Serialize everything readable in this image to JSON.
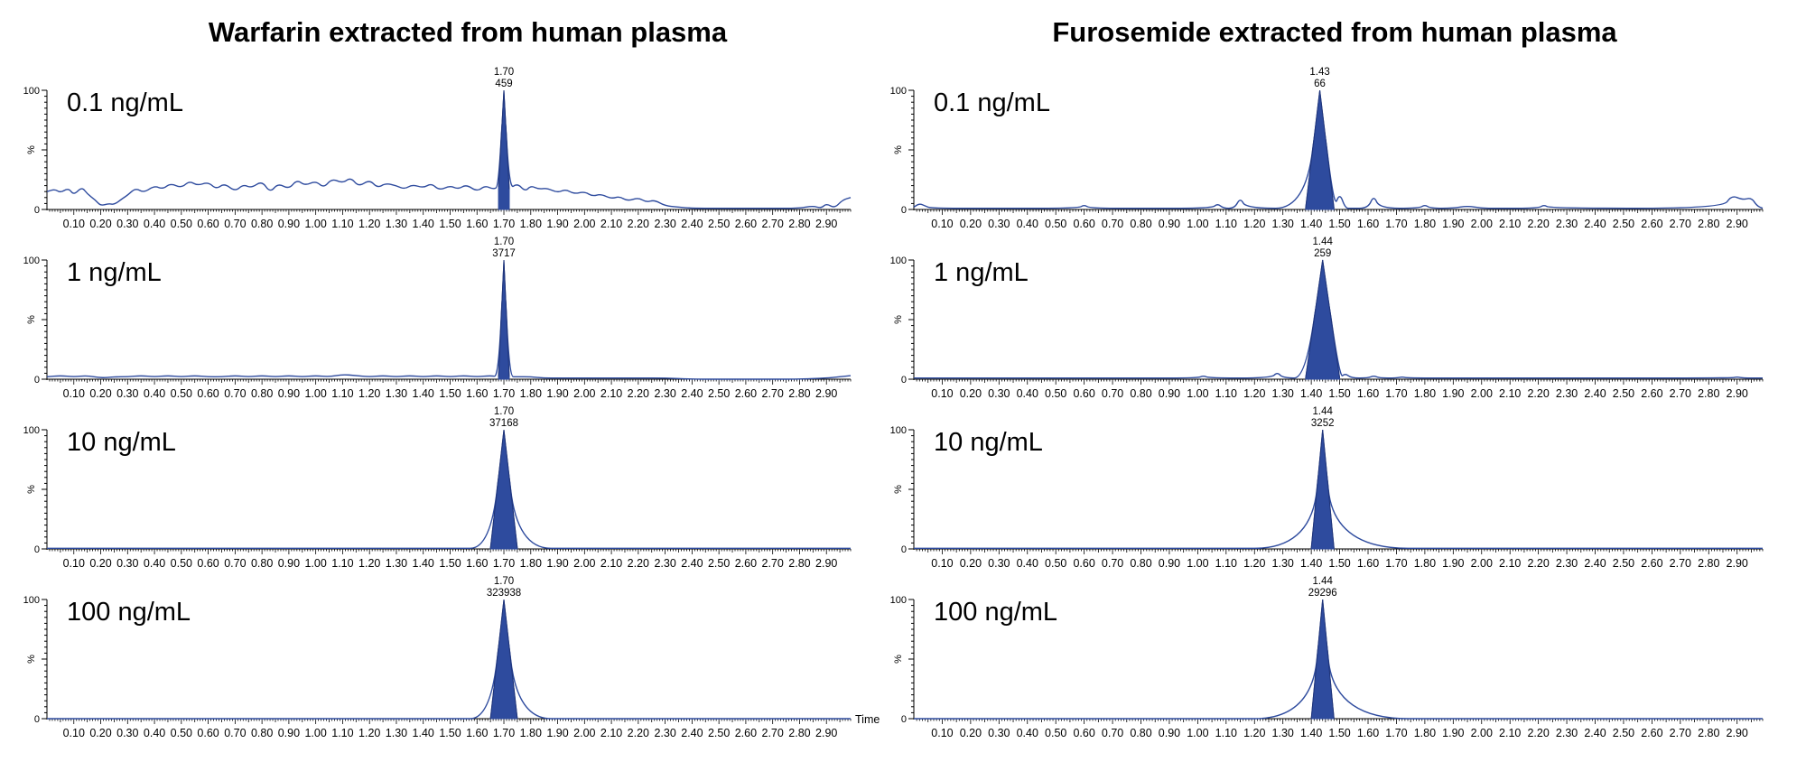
{
  "chart_data": [
    {
      "type": "line",
      "title": "Warfarin extracted from human plasma",
      "ylabel": "%",
      "xlabel": "Time",
      "xlim": [
        0.0,
        2.99
      ],
      "ylim": [
        0,
        100
      ],
      "xticks": [
        "0.10",
        "0.20",
        "0.30",
        "0.40",
        "0.50",
        "0.60",
        "0.70",
        "0.80",
        "0.90",
        "1.00",
        "1.10",
        "1.20",
        "1.30",
        "1.40",
        "1.50",
        "1.60",
        "1.70",
        "1.80",
        "1.90",
        "2.00",
        "2.10",
        "2.20",
        "2.30",
        "2.40",
        "2.50",
        "2.60",
        "2.70",
        "2.80",
        "2.90"
      ],
      "yticks": [
        "0",
        "100"
      ],
      "peak_color": "#2e4b9e",
      "panels": [
        {
          "label": "0.1 ng/mL",
          "peak_time": "1.70",
          "peak_area": "459",
          "series": [
            {
              "x": [
                0.0,
                0.03,
                0.05,
                0.08,
                0.1,
                0.13,
                0.15,
                0.18,
                0.2,
                0.23,
                0.25,
                0.28,
                0.3,
                0.33,
                0.36,
                0.4,
                0.43,
                0.46,
                0.5,
                0.53,
                0.56,
                0.6,
                0.63,
                0.66,
                0.7,
                0.73,
                0.76,
                0.8,
                0.83,
                0.86,
                0.9,
                0.93,
                0.96,
                1.0,
                1.03,
                1.06,
                1.1,
                1.13,
                1.16,
                1.2,
                1.23,
                1.26,
                1.3,
                1.33,
                1.36,
                1.4,
                1.43,
                1.46,
                1.5,
                1.53,
                1.56,
                1.6,
                1.63,
                1.66,
                1.68,
                1.7,
                1.72,
                1.75,
                1.78,
                1.8,
                1.83,
                1.86,
                1.9,
                1.93,
                1.96,
                2.0,
                2.03,
                2.06,
                2.1,
                2.13,
                2.16,
                2.2,
                2.23,
                2.26,
                2.3,
                2.35,
                2.4,
                2.5,
                2.6,
                2.7,
                2.8,
                2.85,
                2.88,
                2.9,
                2.93,
                2.96,
                2.99
              ],
              "y": [
                15,
                17,
                14,
                18,
                12,
                19,
                13,
                8,
                3,
                5,
                4,
                9,
                12,
                18,
                14,
                20,
                17,
                22,
                18,
                24,
                20,
                23,
                17,
                22,
                15,
                21,
                18,
                24,
                14,
                22,
                17,
                25,
                20,
                24,
                18,
                26,
                22,
                27,
                19,
                25,
                18,
                22,
                20,
                17,
                21,
                18,
                22,
                16,
                20,
                17,
                21,
                15,
                20,
                17,
                19,
                100,
                17,
                22,
                15,
                20,
                17,
                18,
                14,
                17,
                13,
                15,
                11,
                13,
                9,
                11,
                7,
                10,
                6,
                8,
                3,
                2,
                1,
                1,
                1,
                1,
                1,
                3,
                1,
                5,
                1,
                8,
                10
              ]
            }
          ]
        },
        {
          "label": "1 ng/mL",
          "peak_time": "1.70",
          "peak_area": "3717",
          "series": [
            {
              "x": [
                0.0,
                0.05,
                0.1,
                0.15,
                0.2,
                0.25,
                0.3,
                0.35,
                0.4,
                0.45,
                0.5,
                0.55,
                0.6,
                0.65,
                0.7,
                0.75,
                0.8,
                0.85,
                0.9,
                0.95,
                1.0,
                1.05,
                1.1,
                1.15,
                1.2,
                1.25,
                1.3,
                1.35,
                1.4,
                1.45,
                1.5,
                1.55,
                1.6,
                1.65,
                1.68,
                1.7,
                1.72,
                1.75,
                1.8,
                1.85,
                1.9,
                1.95,
                2.0,
                2.1,
                2.2,
                2.3,
                2.4,
                2.5,
                2.6,
                2.7,
                2.8,
                2.9,
                2.95,
                2.99
              ],
              "y": [
                2,
                3,
                2,
                3,
                1,
                2,
                2,
                3,
                2,
                3,
                2,
                3,
                2,
                2,
                3,
                2,
                3,
                2,
                3,
                2,
                3,
                2,
                4,
                3,
                2,
                3,
                2,
                3,
                2,
                3,
                2,
                3,
                2,
                3,
                2,
                100,
                2,
                2,
                2,
                1,
                1,
                1,
                1,
                1,
                1,
                1,
                0,
                0,
                0,
                0,
                0,
                1,
                2,
                3
              ]
            }
          ]
        },
        {
          "label": "10 ng/mL",
          "peak_time": "1.70",
          "peak_area": "37168",
          "series": [
            {
              "x": [
                0.0,
                0.5,
                1.0,
                1.5,
                1.65,
                1.7,
                1.75,
                2.0,
                2.5,
                2.99
              ],
              "y": [
                0.5,
                0.5,
                0.5,
                0.5,
                0.5,
                100,
                0.5,
                0.5,
                0.5,
                0.5
              ]
            }
          ]
        },
        {
          "label": "100 ng/mL",
          "peak_time": "1.70",
          "peak_area": "323938",
          "series": [
            {
              "x": [
                0.0,
                0.5,
                1.0,
                1.5,
                1.65,
                1.7,
                1.75,
                2.0,
                2.5,
                2.99
              ],
              "y": [
                0,
                0,
                0,
                0,
                0,
                100,
                0,
                0,
                0,
                0
              ]
            }
          ]
        }
      ]
    },
    {
      "type": "line",
      "title": "Furosemide extracted from human plasma",
      "ylabel": "%",
      "xlabel": "",
      "xlim": [
        0.0,
        2.99
      ],
      "ylim": [
        0,
        100
      ],
      "xticks": [
        "0.10",
        "0.20",
        "0.30",
        "0.40",
        "0.50",
        "0.60",
        "0.70",
        "0.80",
        "0.90",
        "1.00",
        "1.10",
        "1.20",
        "1.30",
        "1.40",
        "1.50",
        "1.60",
        "1.70",
        "1.80",
        "1.90",
        "2.00",
        "2.10",
        "2.20",
        "2.30",
        "2.40",
        "2.50",
        "2.60",
        "2.70",
        "2.80",
        "2.90"
      ],
      "yticks": [
        "0",
        "100"
      ],
      "peak_color": "#2e4b9e",
      "panels": [
        {
          "label": "0.1 ng/mL",
          "peak_time": "1.43",
          "peak_area": "66",
          "series": [
            {
              "x": [
                0.0,
                0.02,
                0.04,
                0.06,
                0.3,
                0.58,
                0.6,
                0.62,
                0.8,
                1.05,
                1.07,
                1.09,
                1.13,
                1.15,
                1.17,
                1.38,
                1.43,
                1.48,
                1.5,
                1.52,
                1.54,
                1.6,
                1.62,
                1.64,
                1.78,
                1.8,
                1.82,
                1.9,
                1.95,
                2.0,
                2.05,
                2.2,
                2.22,
                2.24,
                2.85,
                2.88,
                2.92,
                2.95,
                2.97,
                2.99
              ],
              "y": [
                2,
                5,
                3,
                1,
                1,
                1,
                4,
                1,
                1,
                1,
                5,
                1,
                1,
                10,
                1,
                1,
                100,
                1,
                14,
                1,
                1,
                1,
                12,
                1,
                1,
                4,
                1,
                1,
                3,
                1,
                1,
                1,
                4,
                1,
                1,
                12,
                8,
                10,
                3,
                1
              ]
            }
          ]
        },
        {
          "label": "1 ng/mL",
          "peak_time": "1.44",
          "peak_area": "259",
          "series": [
            {
              "x": [
                0.0,
                0.4,
                0.8,
                1.0,
                1.02,
                1.04,
                1.26,
                1.28,
                1.3,
                1.38,
                1.44,
                1.5,
                1.52,
                1.54,
                1.6,
                1.62,
                1.64,
                1.7,
                1.72,
                1.74,
                2.0,
                2.5,
                2.88,
                2.9,
                2.92,
                2.99
              ],
              "y": [
                1,
                1,
                1,
                1,
                3,
                1,
                1,
                6,
                1,
                1,
                100,
                1,
                5,
                1,
                1,
                3,
                1,
                1,
                2,
                1,
                1,
                1,
                1,
                2,
                1,
                1
              ]
            }
          ]
        },
        {
          "label": "10 ng/mL",
          "peak_time": "1.44",
          "peak_area": "3252",
          "series": [
            {
              "x": [
                0.0,
                0.5,
                1.0,
                1.4,
                1.44,
                1.48,
                2.0,
                2.5,
                2.99
              ],
              "y": [
                0.5,
                0.5,
                0.5,
                0.5,
                100,
                0.5,
                0.5,
                0.5,
                0.5
              ]
            }
          ]
        },
        {
          "label": "100 ng/mL",
          "peak_time": "1.44",
          "peak_area": "29296",
          "series": [
            {
              "x": [
                0.0,
                0.5,
                1.0,
                1.4,
                1.44,
                1.48,
                2.0,
                2.5,
                2.99
              ],
              "y": [
                0,
                0,
                0,
                0,
                100,
                0,
                0,
                0,
                0
              ]
            }
          ]
        }
      ]
    }
  ]
}
